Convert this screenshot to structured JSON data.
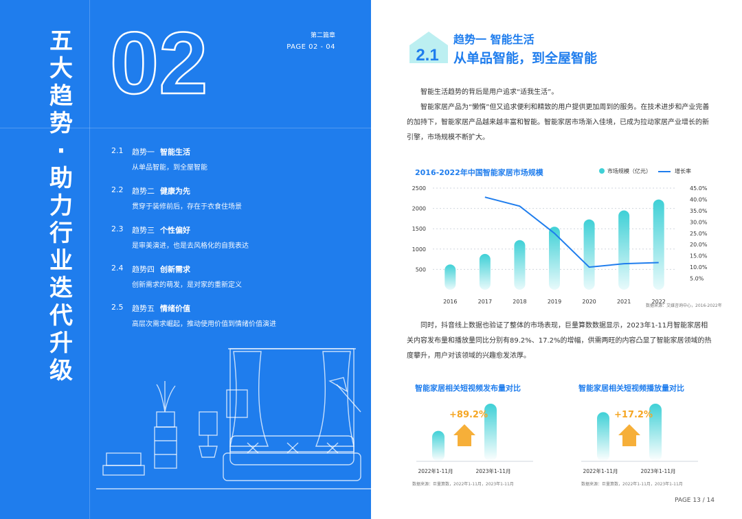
{
  "left": {
    "vertical_title": [
      "五",
      "大",
      "趋",
      "势",
      "·",
      "助",
      "力",
      "行",
      "业",
      "迭",
      "代",
      "升",
      "级"
    ],
    "big_number": "02",
    "chapter_label": "第二篇章",
    "page_range": "PAGE  02 - 04",
    "toc": [
      {
        "num": "2.1",
        "tag": "趋势一",
        "head": "智能生活",
        "sub": "从单品智能，到全屋智能"
      },
      {
        "num": "2.2",
        "tag": "趋势二",
        "head": "健康为先",
        "sub": "贯穿于装修前后，存在于衣食住场景"
      },
      {
        "num": "2.3",
        "tag": "趋势三",
        "head": "个性偏好",
        "sub": "是审美演进，也是去风格化的自我表达"
      },
      {
        "num": "2.4",
        "tag": "趋势四",
        "head": "创新需求",
        "sub": "创新需求的萌发，是对家的重新定义"
      },
      {
        "num": "2.5",
        "tag": "趋势五",
        "head": "情绪价值",
        "sub": "高层次需求崛起，推动使用价值到情绪价值演进"
      }
    ]
  },
  "right": {
    "section_tag": "2.1",
    "title1": "趋势一 智能生活",
    "title2": "从单品智能，到全屋智能",
    "para1": "智能生活趋势的背后是用户追求“适我生活”。",
    "para2": "智能家居产品为“懒惰”但又追求便利和精致的用户提供更加周到的服务。在技术进步和产业完善的加持下，智能家居产品越来越丰富和智能。智能家居市场渐入佳境，已成为拉动家居产业增长的新引擎，市场规模不断扩大。",
    "para3": "同时，抖音线上数据也验证了整体的市场表现，巨量算数数据显示，2023年1-11月智能家居相关内容发布量和播放量同比分别有89.2%、17.2%的增幅，供需两旺的内容凸显了智能家居领域的热度攀升，用户对该领域的兴趣愈发浓厚。",
    "source1": "数据来源：艾媒咨询中心，2016-2022年",
    "source2": "数据来源：巨量算数，2022年1-11月，2023年1-11月",
    "source3": "数据来源：巨量算数，2022年1-11月，2023年1-11月",
    "page_number": "PAGE 13 / 14"
  },
  "colors": {
    "blue": "#1f7ded",
    "teal": "#3fd0d6",
    "orange": "#f5a623"
  },
  "chart_data": [
    {
      "type": "bar",
      "title": "2016-2022年中国智能家居市场规模",
      "categories": [
        "2016",
        "2017",
        "2018",
        "2019",
        "2020",
        "2021",
        "2022"
      ],
      "series": [
        {
          "name": "市场规模（亿元）",
          "type": "bar",
          "axis": "left",
          "values": [
            620,
            880,
            1220,
            1550,
            1730,
            1950,
            2220
          ]
        },
        {
          "name": "增长率",
          "type": "line",
          "axis": "right",
          "values": [
            null,
            41.0,
            37.0,
            25.0,
            10.0,
            11.5,
            12.0
          ]
        }
      ],
      "left_ticks": [
        "2500",
        "2000",
        "1500",
        "1000",
        "500"
      ],
      "left_tick_values": [
        2500,
        2000,
        1500,
        1000,
        500
      ],
      "right_ticks": [
        "45.0%",
        "40.0%",
        "35.0%",
        "30.0%",
        "25.0%",
        "20.0%",
        "15.0%",
        "10.0%",
        "5.0%"
      ],
      "right_tick_values": [
        45,
        40,
        35,
        30,
        25,
        20,
        15,
        10,
        5
      ],
      "ylim_left": [
        0,
        2500
      ],
      "ylim_right": [
        0,
        45
      ]
    },
    {
      "type": "bar",
      "title": "智能家居相关短视频发布量对比",
      "categories": [
        "2022年1-11月",
        "2023年1-11月"
      ],
      "values": [
        1.0,
        1.892
      ],
      "annotation": "+89.2%"
    },
    {
      "type": "bar",
      "title": "智能家居相关短视频播放量对比",
      "categories": [
        "2022年1-11月",
        "2023年1-11月"
      ],
      "values": [
        1.0,
        1.172
      ],
      "annotation": "+17.2%"
    }
  ]
}
